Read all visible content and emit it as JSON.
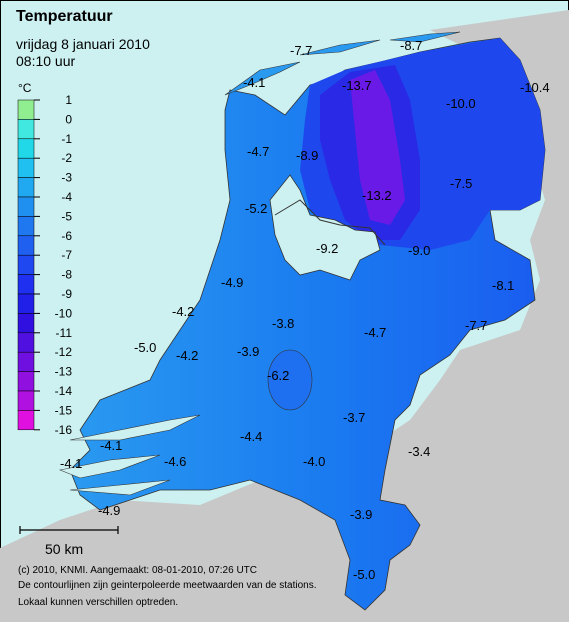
{
  "header": {
    "title": "Temperatuur",
    "date": "vrijdag 8 januari 2010",
    "time": "08:10 uur"
  },
  "legend": {
    "unit": "°C",
    "ticks": [
      1,
      0,
      -1,
      -2,
      -3,
      -4,
      -5,
      -6,
      -7,
      -8,
      -9,
      -10,
      -11,
      -12,
      -13,
      -14,
      -15,
      -16
    ],
    "colors": [
      "#90ee90",
      "#40e8e0",
      "#20d8e8",
      "#20c0f0",
      "#20a8f0",
      "#2090f0",
      "#2078f0",
      "#2060f0",
      "#2048f0",
      "#2030f0",
      "#2020e8",
      "#3010e0",
      "#5010e0",
      "#7010e0",
      "#9010e0",
      "#b010e0",
      "#e010e0"
    ]
  },
  "stations": [
    "-7.7",
    "-8.7",
    "-4.1",
    "-13.7",
    "-10.0",
    "-10.4",
    "-4.7",
    "-8.9",
    "-7.5",
    "-13.2",
    "-5.2",
    "-9.2",
    "-9.0",
    "-8.1",
    "-4.9",
    "-4.2",
    "-3.8",
    "-4.7",
    "-7.7",
    "-5.0",
    "-4.2",
    "-3.9",
    "-6.2",
    "-3.7",
    "-4.4",
    "-3.4",
    "-4.1",
    "-4.1",
    "-4.6",
    "-4.0",
    "-4.9",
    "-3.9",
    "-5.0"
  ],
  "scale_bar": "50 km",
  "footer": [
    "(c) 2010, KNMI. Aangemaakt: 08-01-2010, 07:26 UTC",
    "De contourlijnen zijn geinterpoleerde meetwaarden van de stations.",
    "Lokaal kunnen verschillen optreden."
  ]
}
